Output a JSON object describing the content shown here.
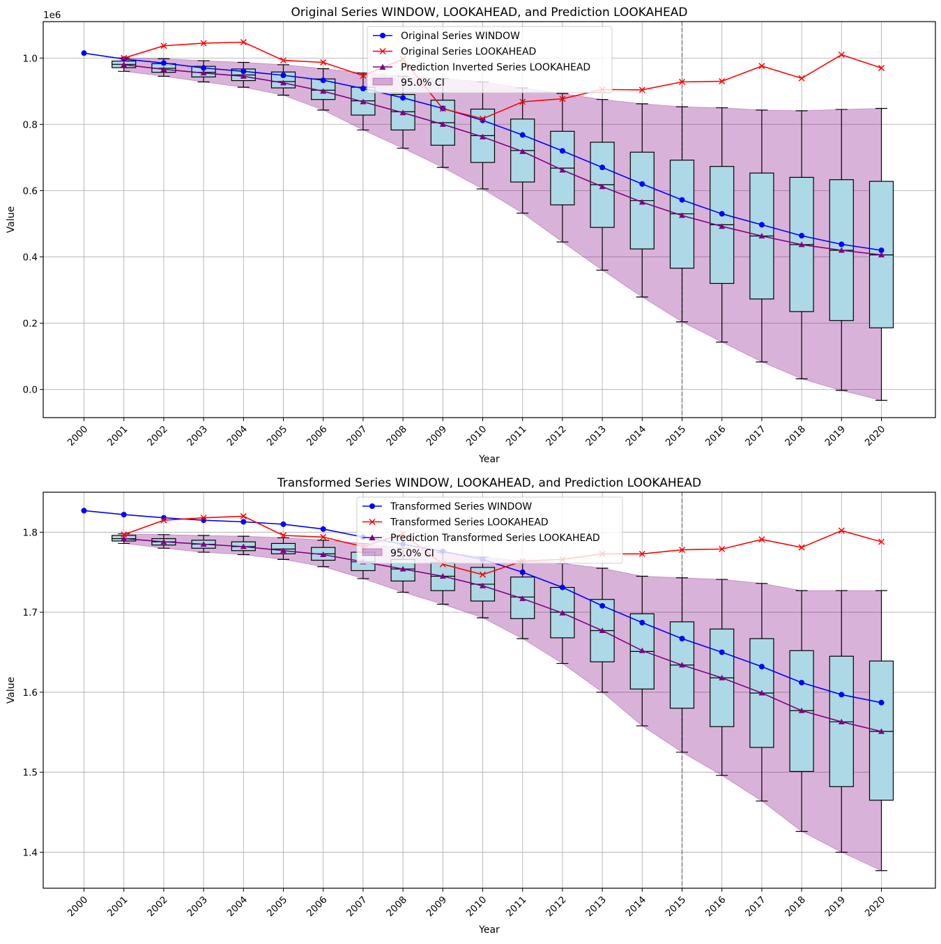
{
  "chart_data": [
    {
      "type": "line",
      "title": "Original Series WINDOW, LOOKAHEAD, and Prediction LOOKAHEAD",
      "xlabel": "Year",
      "ylabel": "Value",
      "y_offset_label": "1e6",
      "y_scale": 1000000,
      "ylim": [
        -85000,
        1110000
      ],
      "yticks": [
        0.0,
        0.2,
        0.4,
        0.6,
        0.8,
        1.0
      ],
      "ytick_labels": [
        "0.0",
        "0.2",
        "0.4",
        "0.6",
        "0.8",
        "1.0"
      ],
      "x_categories": [
        "2000",
        "2001",
        "2002",
        "2003",
        "2004",
        "2005",
        "2006",
        "2007",
        "2008",
        "2009",
        "2010",
        "2011",
        "2012",
        "2013",
        "2014",
        "2015",
        "2016",
        "2017",
        "2018",
        "2019",
        "2020"
      ],
      "vline_year": "2015",
      "legend": [
        "Original Series WINDOW",
        "Original Series LOOKAHEAD",
        "Prediction Inverted Series LOOKAHEAD",
        "95.0% CI"
      ],
      "window": {
        "years": [
          "2000",
          "2001",
          "2002",
          "2003",
          "2004",
          "2005",
          "2006",
          "2007",
          "2008",
          "2009",
          "2010",
          "2011",
          "2012",
          "2013",
          "2014",
          "2015",
          "2016",
          "2017",
          "2018",
          "2019",
          "2020"
        ],
        "values": [
          1015000,
          997000,
          985000,
          970000,
          960000,
          948000,
          933000,
          908000,
          880000,
          848000,
          812000,
          768000,
          720000,
          670000,
          620000,
          572000,
          530000,
          497000,
          464000,
          438000,
          420000
        ]
      },
      "lookahead": {
        "years": [
          "2001",
          "2002",
          "2003",
          "2004",
          "2005",
          "2006",
          "2007",
          "2008",
          "2009",
          "2010",
          "2011",
          "2012",
          "2013",
          "2014",
          "2015",
          "2016",
          "2017",
          "2018",
          "2019",
          "2020"
        ],
        "values": [
          1000000,
          1037000,
          1045000,
          1048000,
          993000,
          987000,
          947000,
          997000,
          847000,
          817000,
          868000,
          877000,
          905000,
          904000,
          928000,
          930000,
          976000,
          939000,
          1010000,
          970000
        ]
      },
      "prediction": {
        "years": [
          "2001",
          "2002",
          "2003",
          "2004",
          "2005",
          "2006",
          "2007",
          "2008",
          "2009",
          "2010",
          "2011",
          "2012",
          "2013",
          "2014",
          "2015",
          "2016",
          "2017",
          "2018",
          "2019",
          "2020"
        ],
        "values": [
          980000,
          966000,
          955000,
          945000,
          925000,
          900000,
          868000,
          835000,
          800000,
          762000,
          718000,
          662000,
          612000,
          565000,
          525000,
          492000,
          463000,
          437000,
          420000,
          406000
        ]
      },
      "ci": {
        "years": [
          "2001",
          "2002",
          "2003",
          "2004",
          "2005",
          "2006",
          "2007",
          "2008",
          "2009",
          "2010",
          "2011",
          "2012",
          "2013",
          "2014",
          "2015",
          "2016",
          "2017",
          "2018",
          "2019",
          "2020"
        ],
        "lower": [
          960000,
          945000,
          928000,
          912000,
          888000,
          843000,
          783000,
          728000,
          670000,
          605000,
          532000,
          445000,
          360000,
          279000,
          204000,
          143000,
          83000,
          32000,
          -3000,
          -33000
        ],
        "upper": [
          1000000,
          998000,
          992000,
          987000,
          980000,
          968000,
          955000,
          945000,
          938000,
          928000,
          910000,
          893000,
          875000,
          862000,
          853000,
          850000,
          843000,
          841000,
          845000,
          848000
        ]
      },
      "boxes": [
        {
          "year": "2001",
          "whislo": 960000,
          "q1": 971000,
          "med": 981000,
          "q3": 991000,
          "whishi": 1000000
        },
        {
          "year": "2002",
          "whislo": 945000,
          "q1": 957000,
          "med": 969000,
          "q3": 983000,
          "whishi": 998000
        },
        {
          "year": "2003",
          "whislo": 928000,
          "q1": 943000,
          "med": 957000,
          "q3": 975000,
          "whishi": 992000
        },
        {
          "year": "2004",
          "whislo": 912000,
          "q1": 932000,
          "med": 949000,
          "q3": 967000,
          "whishi": 987000
        },
        {
          "year": "2005",
          "whislo": 888000,
          "q1": 910000,
          "med": 929000,
          "q3": 958000,
          "whishi": 980000
        },
        {
          "year": "2006",
          "whislo": 843000,
          "q1": 875000,
          "med": 903000,
          "q3": 937000,
          "whishi": 968000
        },
        {
          "year": "2007",
          "whislo": 783000,
          "q1": 828000,
          "med": 871000,
          "q3": 912000,
          "whishi": 955000
        },
        {
          "year": "2008",
          "whislo": 728000,
          "q1": 783000,
          "med": 838000,
          "q3": 890000,
          "whishi": 945000
        },
        {
          "year": "2009",
          "whislo": 670000,
          "q1": 737000,
          "med": 805000,
          "q3": 873000,
          "whishi": 938000
        },
        {
          "year": "2010",
          "whislo": 605000,
          "q1": 685000,
          "med": 766000,
          "q3": 846000,
          "whishi": 928000
        },
        {
          "year": "2011",
          "whislo": 532000,
          "q1": 626000,
          "med": 721000,
          "q3": 816000,
          "whishi": 910000
        },
        {
          "year": "2012",
          "whislo": 445000,
          "q1": 557000,
          "med": 668000,
          "q3": 779000,
          "whishi": 893000
        },
        {
          "year": "2013",
          "whislo": 360000,
          "q1": 489000,
          "med": 618000,
          "q3": 746000,
          "whishi": 875000
        },
        {
          "year": "2014",
          "whislo": 279000,
          "q1": 424000,
          "med": 570000,
          "q3": 716000,
          "whishi": 862000
        },
        {
          "year": "2015",
          "whislo": 204000,
          "q1": 366000,
          "med": 530000,
          "q3": 692000,
          "whishi": 853000
        },
        {
          "year": "2016",
          "whislo": 143000,
          "q1": 320000,
          "med": 497000,
          "q3": 673000,
          "whishi": 850000
        },
        {
          "year": "2017",
          "whislo": 83000,
          "q1": 273000,
          "med": 463000,
          "q3": 653000,
          "whishi": 843000
        },
        {
          "year": "2018",
          "whislo": 32000,
          "q1": 235000,
          "med": 437000,
          "q3": 640000,
          "whishi": 841000
        },
        {
          "year": "2019",
          "whislo": -3000,
          "q1": 208000,
          "med": 420000,
          "q3": 633000,
          "whishi": 845000
        },
        {
          "year": "2020",
          "whislo": -33000,
          "q1": 186000,
          "med": 406000,
          "q3": 628000,
          "whishi": 848000
        }
      ]
    },
    {
      "type": "line",
      "title": "Transformed Series WINDOW, LOOKAHEAD, and Prediction LOOKAHEAD",
      "xlabel": "Year",
      "ylabel": "Value",
      "y_offset_label": "",
      "y_scale": 1,
      "ylim": [
        1.355,
        1.85
      ],
      "yticks": [
        1.4,
        1.5,
        1.6,
        1.7,
        1.8
      ],
      "ytick_labels": [
        "1.4",
        "1.5",
        "1.6",
        "1.7",
        "1.8"
      ],
      "x_categories": [
        "2000",
        "2001",
        "2002",
        "2003",
        "2004",
        "2005",
        "2006",
        "2007",
        "2008",
        "2009",
        "2010",
        "2011",
        "2012",
        "2013",
        "2014",
        "2015",
        "2016",
        "2017",
        "2018",
        "2019",
        "2020"
      ],
      "vline_year": "2015",
      "legend": [
        "Transformed Series WINDOW",
        "Transformed Series LOOKAHEAD",
        "Prediction Transformed Series LOOKAHEAD",
        "95.0% CI"
      ],
      "window": {
        "years": [
          "2000",
          "2001",
          "2002",
          "2003",
          "2004",
          "2005",
          "2006",
          "2007",
          "2008",
          "2009",
          "2010",
          "2011",
          "2012",
          "2013",
          "2014",
          "2015",
          "2016",
          "2017",
          "2018",
          "2019",
          "2020"
        ],
        "values": [
          1.827,
          1.822,
          1.818,
          1.815,
          1.813,
          1.81,
          1.804,
          1.794,
          1.785,
          1.776,
          1.766,
          1.75,
          1.731,
          1.708,
          1.687,
          1.667,
          1.65,
          1.632,
          1.612,
          1.597,
          1.587
        ]
      },
      "lookahead": {
        "years": [
          "2001",
          "2002",
          "2003",
          "2004",
          "2005",
          "2006",
          "2007",
          "2008",
          "2009",
          "2010",
          "2011",
          "2012",
          "2013",
          "2014",
          "2015",
          "2016",
          "2017",
          "2018",
          "2019",
          "2020"
        ],
        "values": [
          1.797,
          1.815,
          1.818,
          1.82,
          1.796,
          1.794,
          1.782,
          1.798,
          1.76,
          1.747,
          1.764,
          1.766,
          1.773,
          1.773,
          1.778,
          1.779,
          1.791,
          1.781,
          1.802,
          1.788
        ]
      },
      "prediction": {
        "years": [
          "2001",
          "2002",
          "2003",
          "2004",
          "2005",
          "2006",
          "2007",
          "2008",
          "2009",
          "2010",
          "2011",
          "2012",
          "2013",
          "2014",
          "2015",
          "2016",
          "2017",
          "2018",
          "2019",
          "2020"
        ],
        "values": [
          1.792,
          1.788,
          1.785,
          1.782,
          1.777,
          1.772,
          1.763,
          1.754,
          1.745,
          1.733,
          1.717,
          1.699,
          1.677,
          1.652,
          1.634,
          1.618,
          1.599,
          1.577,
          1.563,
          1.551
        ]
      },
      "ci": {
        "years": [
          "2001",
          "2002",
          "2003",
          "2004",
          "2005",
          "2006",
          "2007",
          "2008",
          "2009",
          "2010",
          "2011",
          "2012",
          "2013",
          "2014",
          "2015",
          "2016",
          "2017",
          "2018",
          "2019",
          "2020"
        ],
        "lower": [
          1.786,
          1.78,
          1.775,
          1.772,
          1.766,
          1.757,
          1.742,
          1.725,
          1.71,
          1.693,
          1.667,
          1.636,
          1.6,
          1.558,
          1.525,
          1.496,
          1.464,
          1.426,
          1.4,
          1.377
        ],
        "upper": [
          1.798,
          1.797,
          1.796,
          1.795,
          1.793,
          1.79,
          1.786,
          1.78,
          1.775,
          1.769,
          1.764,
          1.761,
          1.755,
          1.745,
          1.743,
          1.741,
          1.736,
          1.727,
          1.727,
          1.727
        ]
      },
      "boxes": [
        {
          "year": "2001",
          "whislo": 1.786,
          "q1": 1.789,
          "med": 1.792,
          "q3": 1.796,
          "whishi": 1.798
        },
        {
          "year": "2002",
          "whislo": 1.78,
          "q1": 1.784,
          "med": 1.788,
          "q3": 1.792,
          "whishi": 1.797
        },
        {
          "year": "2003",
          "whislo": 1.775,
          "q1": 1.78,
          "med": 1.785,
          "q3": 1.79,
          "whishi": 1.796
        },
        {
          "year": "2004",
          "whislo": 1.772,
          "q1": 1.777,
          "med": 1.782,
          "q3": 1.788,
          "whishi": 1.795
        },
        {
          "year": "2005",
          "whislo": 1.766,
          "q1": 1.773,
          "med": 1.779,
          "q3": 1.786,
          "whishi": 1.793
        },
        {
          "year": "2006",
          "whislo": 1.757,
          "q1": 1.765,
          "med": 1.773,
          "q3": 1.781,
          "whishi": 1.79
        },
        {
          "year": "2007",
          "whislo": 1.742,
          "q1": 1.752,
          "med": 1.763,
          "q3": 1.775,
          "whishi": 1.786
        },
        {
          "year": "2008",
          "whislo": 1.725,
          "q1": 1.739,
          "med": 1.754,
          "q3": 1.766,
          "whishi": 1.78
        },
        {
          "year": "2009",
          "whislo": 1.71,
          "q1": 1.727,
          "med": 1.745,
          "q3": 1.762,
          "whishi": 1.775
        },
        {
          "year": "2010",
          "whislo": 1.693,
          "q1": 1.714,
          "med": 1.735,
          "q3": 1.756,
          "whishi": 1.769
        },
        {
          "year": "2011",
          "whislo": 1.667,
          "q1": 1.692,
          "med": 1.719,
          "q3": 1.744,
          "whishi": 1.764
        },
        {
          "year": "2012",
          "whislo": 1.636,
          "q1": 1.668,
          "med": 1.7,
          "q3": 1.731,
          "whishi": 1.761
        },
        {
          "year": "2013",
          "whislo": 1.6,
          "q1": 1.638,
          "med": 1.677,
          "q3": 1.716,
          "whishi": 1.755
        },
        {
          "year": "2014",
          "whislo": 1.558,
          "q1": 1.604,
          "med": 1.651,
          "q3": 1.698,
          "whishi": 1.745
        },
        {
          "year": "2015",
          "whislo": 1.525,
          "q1": 1.58,
          "med": 1.634,
          "q3": 1.688,
          "whishi": 1.743
        },
        {
          "year": "2016",
          "whislo": 1.496,
          "q1": 1.557,
          "med": 1.618,
          "q3": 1.679,
          "whishi": 1.741
        },
        {
          "year": "2017",
          "whislo": 1.464,
          "q1": 1.531,
          "med": 1.599,
          "q3": 1.667,
          "whishi": 1.736
        },
        {
          "year": "2018",
          "whislo": 1.426,
          "q1": 1.501,
          "med": 1.577,
          "q3": 1.652,
          "whishi": 1.727
        },
        {
          "year": "2019",
          "whislo": 1.4,
          "q1": 1.482,
          "med": 1.563,
          "q3": 1.645,
          "whishi": 1.727
        },
        {
          "year": "2020",
          "whislo": 1.377,
          "q1": 1.465,
          "med": 1.551,
          "q3": 1.639,
          "whishi": 1.727
        }
      ]
    }
  ],
  "colors": {
    "window": "#0000ff",
    "lookahead": "#ff0000",
    "prediction": "#800080",
    "ci_fill": "#800080",
    "box_fill": "#add8e6",
    "grid": "#b0b0b0",
    "vline": "#808080"
  }
}
